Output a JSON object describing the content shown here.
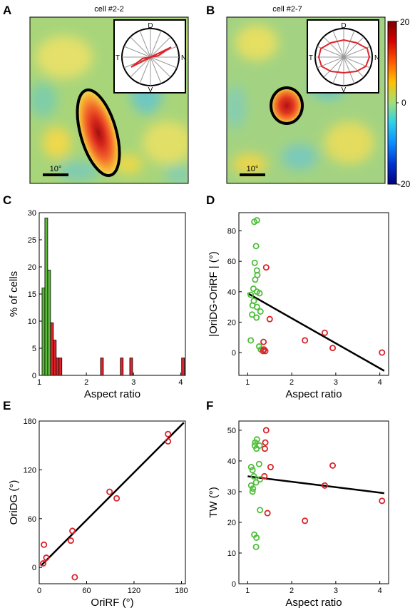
{
  "panels": {
    "A": {
      "letter": "A",
      "title": "cell #2-2",
      "scale_label": "10°"
    },
    "B": {
      "letter": "B",
      "title": "cell #2-7",
      "scale_label": "10°"
    },
    "C": {
      "letter": "C"
    },
    "D": {
      "letter": "D"
    },
    "E": {
      "letter": "E"
    },
    "F": {
      "letter": "F"
    }
  },
  "polar_labels": {
    "top": "D",
    "bottom": "V",
    "left": "T",
    "right": "N"
  },
  "colorbar": {
    "ticks": [
      "20",
      "0",
      "-20"
    ],
    "values": [
      20,
      0,
      -20
    ],
    "range": [
      -20,
      20
    ]
  },
  "colors": {
    "green": "#4fbf3a",
    "red": "#d9232b",
    "green_fill": "#5dbb3b",
    "red_fill": "#e0242b"
  },
  "chart_data": [
    {
      "type": "heatmap",
      "panel": "A",
      "title": "cell #2-2",
      "colorbar_range": [
        -20,
        20
      ],
      "inset_polar": {
        "labels": [
          "D",
          "N",
          "V",
          "T"
        ],
        "shape": "elongated along N-T axis"
      },
      "receptive_field": {
        "shape": "elongated ellipse",
        "peak_value": 20
      }
    },
    {
      "type": "heatmap",
      "panel": "B",
      "title": "cell #2-7",
      "colorbar_range": [
        -20,
        20
      ],
      "inset_polar": {
        "labels": [
          "D",
          "N",
          "V",
          "T"
        ],
        "shape": "near-circular"
      },
      "receptive_field": {
        "shape": "small round",
        "peak_value": 20
      }
    },
    {
      "type": "bar",
      "panel": "C",
      "xlabel": "Aspect ratio",
      "ylabel": "% of cells",
      "xlim": [
        1,
        4.1
      ],
      "ylim": [
        0,
        30
      ],
      "xticks": [
        1,
        2,
        3,
        4
      ],
      "yticks": [
        0,
        5,
        10,
        15,
        20,
        25,
        30
      ],
      "bin_width": 0.06,
      "series": [
        {
          "color": "green",
          "bins": [
            {
              "x": 1.09,
              "value": 16.1
            },
            {
              "x": 1.15,
              "value": 29
            },
            {
              "x": 1.21,
              "value": 19.4
            }
          ]
        },
        {
          "color": "red",
          "bins": [
            {
              "x": 1.27,
              "value": 9.7
            },
            {
              "x": 1.33,
              "value": 6.5
            },
            {
              "x": 1.39,
              "value": 3.2
            },
            {
              "x": 1.45,
              "value": 3.2
            },
            {
              "x": 2.33,
              "value": 3.2
            },
            {
              "x": 2.75,
              "value": 3.2
            },
            {
              "x": 2.95,
              "value": 3.2
            },
            {
              "x": 4.05,
              "value": 3.2
            }
          ]
        }
      ]
    },
    {
      "type": "scatter",
      "panel": "D",
      "xlabel": "Aspect ratio",
      "ylabel": "|OriDG-OriRF | (°)",
      "xlim": [
        0.8,
        4.2
      ],
      "ylim": [
        -15,
        92
      ],
      "xticks": [
        1,
        2,
        3,
        4
      ],
      "yticks": [
        0,
        20,
        40,
        60,
        80
      ],
      "fit_line": {
        "x": [
          1.0,
          4.1
        ],
        "y": [
          39,
          -12
        ]
      },
      "series": [
        {
          "color": "green",
          "points": [
            [
              1.15,
              86
            ],
            [
              1.21,
              87
            ],
            [
              1.19,
              70
            ],
            [
              1.16,
              59
            ],
            [
              1.21,
              54
            ],
            [
              1.22,
              51
            ],
            [
              1.17,
              48
            ],
            [
              1.07,
              38
            ],
            [
              1.13,
              42
            ],
            [
              1.21,
              40
            ],
            [
              1.27,
              39
            ],
            [
              1.14,
              34
            ],
            [
              1.11,
              31
            ],
            [
              1.21,
              30
            ],
            [
              1.29,
              27
            ],
            [
              1.1,
              25
            ],
            [
              1.2,
              23
            ],
            [
              1.07,
              8
            ],
            [
              1.26,
              4
            ],
            [
              1.3,
              2
            ]
          ]
        },
        {
          "color": "red",
          "points": [
            [
              1.42,
              56
            ],
            [
              1.5,
              22
            ],
            [
              1.36,
              7
            ],
            [
              1.37,
              2
            ],
            [
              1.35,
              1
            ],
            [
              1.4,
              1
            ],
            [
              2.3,
              8
            ],
            [
              2.75,
              13
            ],
            [
              2.93,
              3
            ],
            [
              4.05,
              0
            ]
          ]
        }
      ]
    },
    {
      "type": "scatter",
      "panel": "E",
      "xlabel": "OriRF (°)",
      "ylabel": "OriDG (°)",
      "xlim": [
        0,
        185
      ],
      "ylim": [
        -20,
        180
      ],
      "xticks": [
        0,
        60,
        120,
        180
      ],
      "yticks": [
        0,
        60,
        120,
        180
      ],
      "fit_line": {
        "x": [
          2,
          183
        ],
        "y": [
          2,
          178
        ]
      },
      "series": [
        {
          "color": "red",
          "points": [
            [
              6,
              28
            ],
            [
              9,
              12
            ],
            [
              5,
              5
            ],
            [
              40,
              33
            ],
            [
              42,
              45
            ],
            [
              45,
              -12
            ],
            [
              89,
              93
            ],
            [
              98,
              85
            ],
            [
              163,
              164
            ],
            [
              163,
              155
            ]
          ]
        }
      ]
    },
    {
      "type": "scatter",
      "panel": "F",
      "xlabel": "Aspect ratio",
      "ylabel": "TW (°)",
      "xlim": [
        0.8,
        4.2
      ],
      "ylim": [
        0,
        53
      ],
      "xticks": [
        1,
        2,
        3,
        4
      ],
      "yticks": [
        0,
        10,
        20,
        30,
        40,
        50
      ],
      "fit_line": {
        "x": [
          1.0,
          4.1
        ],
        "y": [
          35,
          29.5
        ]
      },
      "series": [
        {
          "color": "green",
          "points": [
            [
              1.21,
              47
            ],
            [
              1.17,
              46
            ],
            [
              1.2,
              44
            ],
            [
              1.16,
              45
            ],
            [
              1.27,
              45
            ],
            [
              1.26,
              39
            ],
            [
              1.08,
              38
            ],
            [
              1.11,
              37
            ],
            [
              1.14,
              35
            ],
            [
              1.19,
              33
            ],
            [
              1.28,
              34
            ],
            [
              1.08,
              32
            ],
            [
              1.12,
              31
            ],
            [
              1.11,
              30
            ],
            [
              1.28,
              24
            ],
            [
              1.15,
              16
            ],
            [
              1.2,
              15
            ],
            [
              1.19,
              12
            ]
          ]
        },
        {
          "color": "red",
          "points": [
            [
              1.42,
              50
            ],
            [
              1.4,
              46
            ],
            [
              1.39,
              44
            ],
            [
              1.52,
              38
            ],
            [
              1.38,
              35
            ],
            [
              1.45,
              23
            ],
            [
              2.3,
              20.5
            ],
            [
              2.75,
              32
            ],
            [
              2.93,
              38.5
            ],
            [
              4.05,
              27
            ]
          ]
        }
      ]
    }
  ]
}
